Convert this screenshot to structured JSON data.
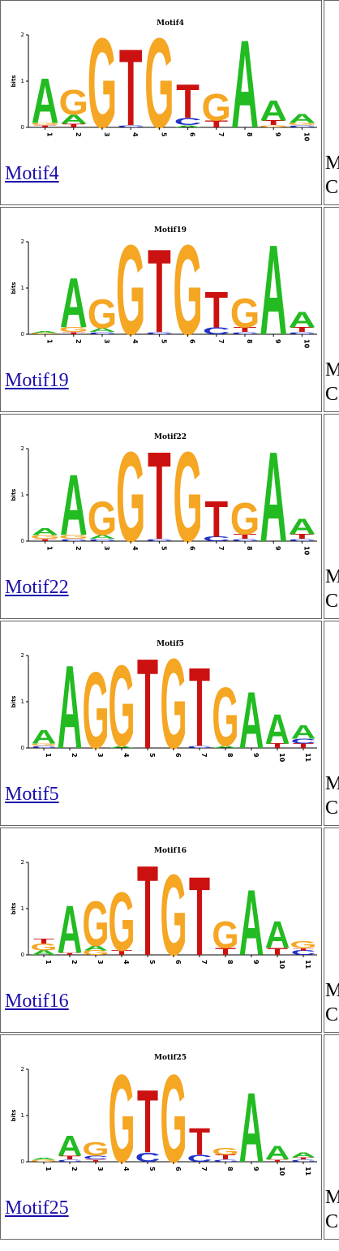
{
  "colors": {
    "A": "#22bb22",
    "C": "#2233cc",
    "G": "#f5a623",
    "T": "#cc1111",
    "link": "#1a0dab",
    "border": "#666666"
  },
  "axis": {
    "ylabel": "bits",
    "ticks": [
      "0",
      "1",
      "2"
    ]
  },
  "side_text": {
    "line1": "M",
    "line2": "C"
  },
  "motifs": [
    {
      "title": "Motif4",
      "link": "Motif4",
      "columns": [
        [
          {
            "b": "T",
            "h": 0.05
          },
          {
            "b": "G",
            "h": 0.05
          },
          {
            "b": "A",
            "h": 1.0
          }
        ],
        [
          {
            "b": "T",
            "h": 0.08
          },
          {
            "b": "A",
            "h": 0.2
          },
          {
            "b": "G",
            "h": 0.55
          }
        ],
        [
          {
            "b": "G",
            "h": 2.0
          }
        ],
        [
          {
            "b": "C",
            "h": 0.05
          },
          {
            "b": "T",
            "h": 1.7
          }
        ],
        [
          {
            "b": "G",
            "h": 2.0
          }
        ],
        [
          {
            "b": "A",
            "h": 0.05
          },
          {
            "b": "C",
            "h": 0.15
          },
          {
            "b": "T",
            "h": 0.75
          }
        ],
        [
          {
            "b": "T",
            "h": 0.15
          },
          {
            "b": "G",
            "h": 0.6
          }
        ],
        [
          {
            "b": "A",
            "h": 1.95
          }
        ],
        [
          {
            "b": "G",
            "h": 0.05
          },
          {
            "b": "T",
            "h": 0.1
          },
          {
            "b": "A",
            "h": 0.45
          }
        ],
        [
          {
            "b": "C",
            "h": 0.05
          },
          {
            "b": "G",
            "h": 0.05
          },
          {
            "b": "A",
            "h": 0.2
          }
        ]
      ]
    },
    {
      "title": "Motif19",
      "link": "Motif19",
      "columns": [
        [
          {
            "b": "G",
            "h": 0.03
          },
          {
            "b": "A",
            "h": 0.04
          }
        ],
        [
          {
            "b": "T",
            "h": 0.05
          },
          {
            "b": "G",
            "h": 0.1
          },
          {
            "b": "A",
            "h": 1.1
          }
        ],
        [
          {
            "b": "C",
            "h": 0.05
          },
          {
            "b": "A",
            "h": 0.08
          },
          {
            "b": "G",
            "h": 0.65
          }
        ],
        [
          {
            "b": "G",
            "h": 2.0
          }
        ],
        [
          {
            "b": "C",
            "h": 0.05
          },
          {
            "b": "T",
            "h": 1.85
          }
        ],
        [
          {
            "b": "G",
            "h": 2.0
          }
        ],
        [
          {
            "b": "C",
            "h": 0.15
          },
          {
            "b": "T",
            "h": 0.8
          }
        ],
        [
          {
            "b": "C",
            "h": 0.05
          },
          {
            "b": "T",
            "h": 0.1
          },
          {
            "b": "G",
            "h": 0.65
          }
        ],
        [
          {
            "b": "A",
            "h": 2.0
          }
        ],
        [
          {
            "b": "C",
            "h": 0.05
          },
          {
            "b": "T",
            "h": 0.1
          },
          {
            "b": "A",
            "h": 0.35
          }
        ]
      ]
    },
    {
      "title": "Motif22",
      "link": "Motif22",
      "columns": [
        [
          {
            "b": "T",
            "h": 0.05
          },
          {
            "b": "G",
            "h": 0.08
          },
          {
            "b": "A",
            "h": 0.15
          }
        ],
        [
          {
            "b": "C",
            "h": 0.05
          },
          {
            "b": "G",
            "h": 0.08
          },
          {
            "b": "A",
            "h": 1.35
          }
        ],
        [
          {
            "b": "C",
            "h": 0.05
          },
          {
            "b": "A",
            "h": 0.08
          },
          {
            "b": "G",
            "h": 0.75
          }
        ],
        [
          {
            "b": "G",
            "h": 2.0
          }
        ],
        [
          {
            "b": "C",
            "h": 0.05
          },
          {
            "b": "T",
            "h": 1.95
          }
        ],
        [
          {
            "b": "G",
            "h": 2.0
          }
        ],
        [
          {
            "b": "C",
            "h": 0.1
          },
          {
            "b": "T",
            "h": 0.8
          }
        ],
        [
          {
            "b": "C",
            "h": 0.05
          },
          {
            "b": "T",
            "h": 0.1
          },
          {
            "b": "G",
            "h": 0.7
          }
        ],
        [
          {
            "b": "A",
            "h": 2.0
          }
        ],
        [
          {
            "b": "C",
            "h": 0.05
          },
          {
            "b": "T",
            "h": 0.1
          },
          {
            "b": "A",
            "h": 0.35
          }
        ]
      ]
    },
    {
      "title": "Motif5",
      "link": "Motif5",
      "columns": [
        [
          {
            "b": "C",
            "h": 0.05
          },
          {
            "b": "G",
            "h": 0.05
          },
          {
            "b": "A",
            "h": 0.3
          }
        ],
        [
          {
            "b": "A",
            "h": 1.85
          }
        ],
        [
          {
            "b": "G",
            "h": 1.7
          }
        ],
        [
          {
            "b": "A",
            "h": 0.05
          },
          {
            "b": "G",
            "h": 1.8
          }
        ],
        [
          {
            "b": "T",
            "h": 2.0
          }
        ],
        [
          {
            "b": "G",
            "h": 2.0
          }
        ],
        [
          {
            "b": "C",
            "h": 0.05
          },
          {
            "b": "T",
            "h": 1.75
          }
        ],
        [
          {
            "b": "A",
            "h": 0.05
          },
          {
            "b": "G",
            "h": 1.3
          }
        ],
        [
          {
            "b": "A",
            "h": 1.25
          }
        ],
        [
          {
            "b": "T",
            "h": 0.1
          },
          {
            "b": "A",
            "h": 0.65
          }
        ],
        [
          {
            "b": "T",
            "h": 0.1
          },
          {
            "b": "C",
            "h": 0.1
          },
          {
            "b": "A",
            "h": 0.3
          }
        ]
      ]
    },
    {
      "title": "Motif16",
      "link": "Motif16",
      "columns": [
        [
          {
            "b": "A",
            "h": 0.1
          },
          {
            "b": "G",
            "h": 0.15
          },
          {
            "b": "T",
            "h": 0.1
          }
        ],
        [
          {
            "b": "T",
            "h": 0.05
          },
          {
            "b": "A",
            "h": 1.05
          }
        ],
        [
          {
            "b": "G",
            "h": 0.1
          },
          {
            "b": "A",
            "h": 0.1
          },
          {
            "b": "G",
            "h": 1.0
          }
        ],
        [
          {
            "b": "T",
            "h": 0.1
          },
          {
            "b": "G",
            "h": 1.3
          }
        ],
        [
          {
            "b": "T",
            "h": 2.0
          }
        ],
        [
          {
            "b": "G",
            "h": 1.8
          }
        ],
        [
          {
            "b": "T",
            "h": 1.75
          }
        ],
        [
          {
            "b": "T",
            "h": 0.15
          },
          {
            "b": "G",
            "h": 0.6
          }
        ],
        [
          {
            "b": "A",
            "h": 1.45
          }
        ],
        [
          {
            "b": "T",
            "h": 0.15
          },
          {
            "b": "A",
            "h": 0.6
          }
        ],
        [
          {
            "b": "C",
            "h": 0.1
          },
          {
            "b": "T",
            "h": 0.05
          },
          {
            "b": "G",
            "h": 0.15
          }
        ]
      ]
    },
    {
      "title": "Motif25",
      "link": "Motif25",
      "columns": [
        [
          {
            "b": "G",
            "h": 0.04
          },
          {
            "b": "A",
            "h": 0.04
          }
        ],
        [
          {
            "b": "C",
            "h": 0.05
          },
          {
            "b": "T",
            "h": 0.08
          },
          {
            "b": "A",
            "h": 0.45
          }
        ],
        [
          {
            "b": "T",
            "h": 0.05
          },
          {
            "b": "C",
            "h": 0.08
          },
          {
            "b": "G",
            "h": 0.3
          }
        ],
        [
          {
            "b": "G",
            "h": 1.95
          }
        ],
        [
          {
            "b": "C",
            "h": 0.2
          },
          {
            "b": "T",
            "h": 1.4
          }
        ],
        [
          {
            "b": "G",
            "h": 1.95
          }
        ],
        [
          {
            "b": "C",
            "h": 0.15
          },
          {
            "b": "T",
            "h": 0.6
          }
        ],
        [
          {
            "b": "C",
            "h": 0.05
          },
          {
            "b": "T",
            "h": 0.1
          },
          {
            "b": "G",
            "h": 0.15
          }
        ],
        [
          {
            "b": "A",
            "h": 1.55
          }
        ],
        [
          {
            "b": "T",
            "h": 0.05
          },
          {
            "b": "A",
            "h": 0.3
          }
        ],
        [
          {
            "b": "C",
            "h": 0.05
          },
          {
            "b": "T",
            "h": 0.05
          },
          {
            "b": "A",
            "h": 0.1
          }
        ]
      ]
    }
  ]
}
